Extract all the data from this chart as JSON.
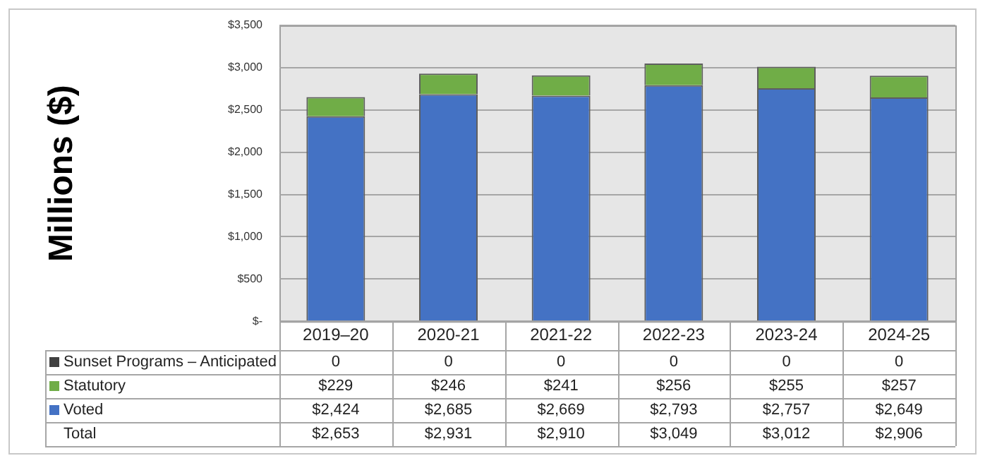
{
  "chart_data": {
    "type": "bar",
    "stacked": true,
    "ylabel": "Millions ($)",
    "categories": [
      "2019–20",
      "2020-21",
      "2021-22",
      "2022-23",
      "2023-24",
      "2024-25"
    ],
    "series": [
      {
        "name": "Voted",
        "color": "#4472c4",
        "values": [
          2424,
          2685,
          2669,
          2793,
          2757,
          2649
        ],
        "value_labels": [
          "$2,424",
          "$2,685",
          "$2,669",
          "$2,793",
          "$2,757",
          "$2,649"
        ]
      },
      {
        "name": "Statutory",
        "color": "#70ad47",
        "values": [
          229,
          246,
          241,
          256,
          255,
          257
        ],
        "value_labels": [
          "$229",
          "$246",
          "$241",
          "$256",
          "$255",
          "$257"
        ]
      },
      {
        "name": "Sunset Programs – Anticipated",
        "color": "#404040",
        "values": [
          0,
          0,
          0,
          0,
          0,
          0
        ],
        "value_labels": [
          "0",
          "0",
          "0",
          "0",
          "0",
          "0"
        ]
      }
    ],
    "annotations": [
      "Total",
      "$2,653",
      "$2,931",
      "$2,910",
      "$3,049",
      "$3,012",
      "$2,906"
    ],
    "legend": "bottom",
    "ylim": [
      0,
      3500
    ],
    "yticks": [
      {
        "value": 0,
        "label": "$-"
      },
      {
        "value": 500,
        "label": "$500"
      },
      {
        "value": 1000,
        "label": "$1,000"
      },
      {
        "value": 1500,
        "label": "$1,500"
      },
      {
        "value": 2000,
        "label": "$2,000"
      },
      {
        "value": 2500,
        "label": "$2,500"
      },
      {
        "value": 3000,
        "label": "$3,000"
      },
      {
        "value": 3500,
        "label": "$3,500"
      }
    ],
    "grid": "y"
  }
}
